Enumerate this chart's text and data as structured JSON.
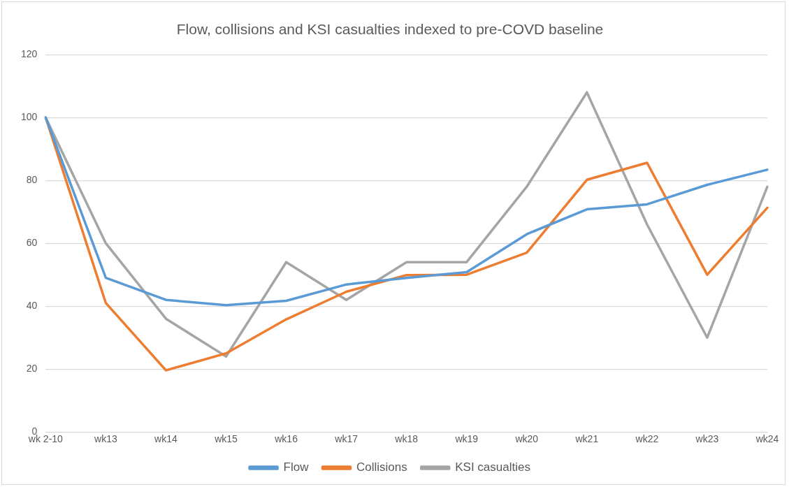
{
  "chart_data": {
    "type": "line",
    "title": "Flow, collisions and KSI casualties indexed to pre-COVD baseline",
    "categories": [
      "wk 2-10",
      "wk13",
      "wk14",
      "wk15",
      "wk16",
      "wk17",
      "wk18",
      "wk19",
      "wk20",
      "wk21",
      "wk22",
      "wk23",
      "wk24"
    ],
    "series": [
      {
        "name": "Flow",
        "color": "#5b9bd5",
        "values": [
          100,
          49,
          42,
          40.3,
          41.7,
          46.9,
          49,
          50.8,
          62.9,
          70.8,
          72.4,
          78.6,
          83.4
        ]
      },
      {
        "name": "Collisions",
        "color": "#ed7d31",
        "values": [
          100,
          41,
          19.6,
          25,
          35.8,
          44.6,
          49.9,
          50,
          57,
          80.2,
          85.6,
          50,
          71.3
        ]
      },
      {
        "name": "KSI casualties",
        "color": "#a5a5a5",
        "values": [
          100,
          60,
          36,
          24,
          54,
          42,
          54,
          54,
          78,
          108,
          66,
          30,
          78
        ]
      }
    ],
    "ylim": [
      0,
      120
    ],
    "yticks": [
      0,
      20,
      40,
      60,
      80,
      100,
      120
    ],
    "grid": "y",
    "legend": "bottom",
    "marker": "none",
    "line_style": "solid"
  }
}
